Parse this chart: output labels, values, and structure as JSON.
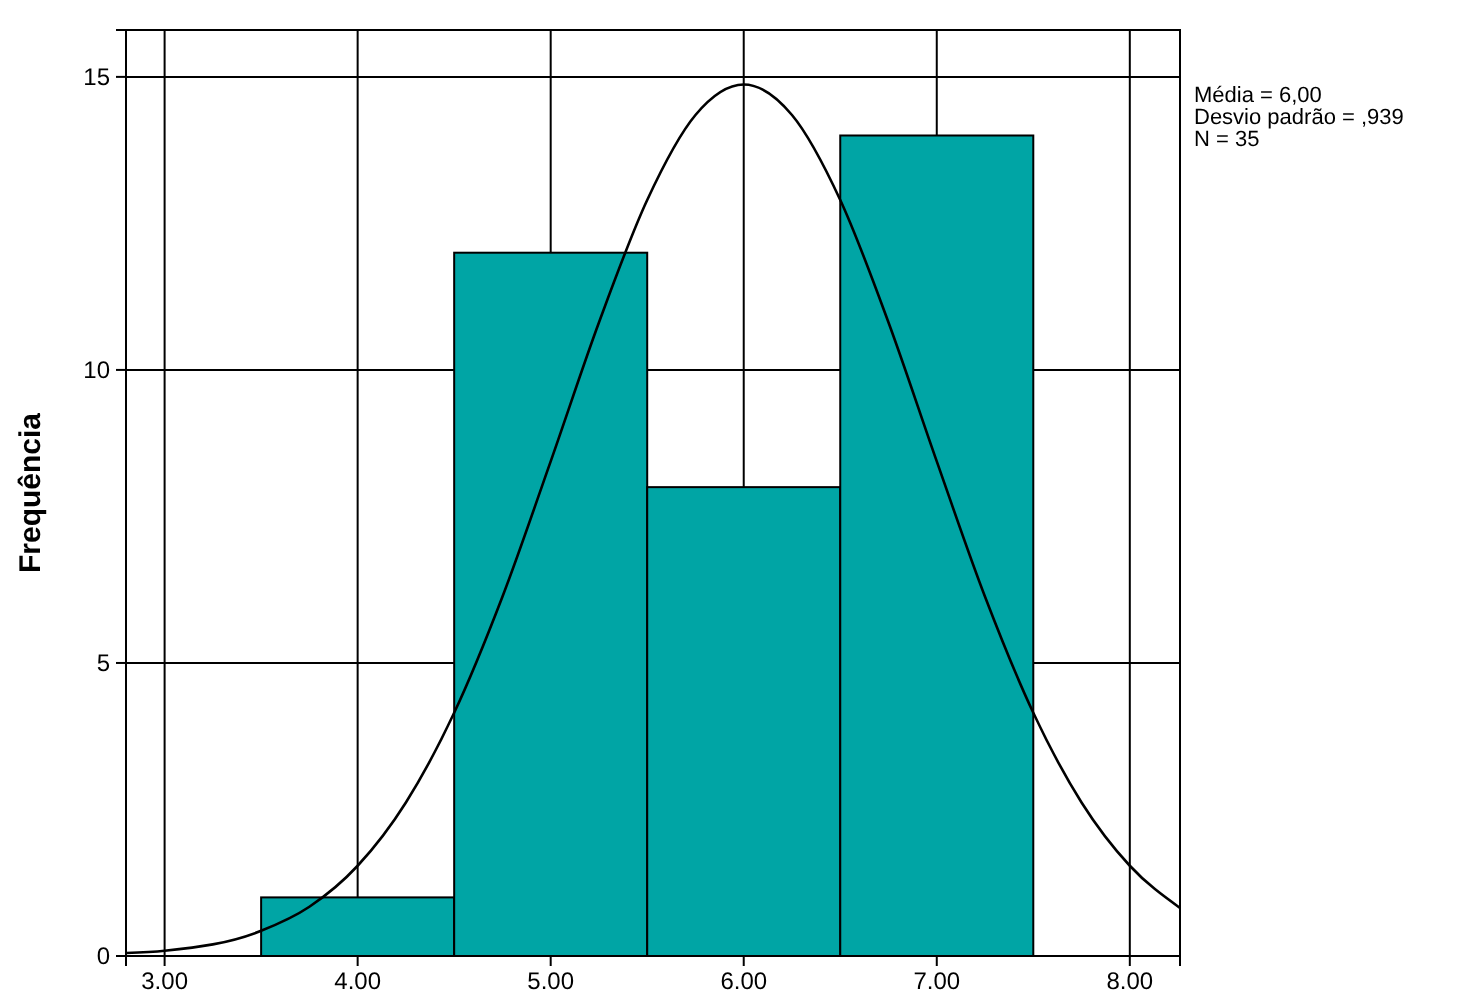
{
  "chart_data": {
    "type": "histogram",
    "ylabel": "Frequência",
    "annotations": [
      "Média = 6,00",
      "Desvio padrão = ,939",
      "N = 35"
    ],
    "bins": [
      3.5,
      4.5,
      5.5,
      6.5,
      7.5
    ],
    "series": [
      {
        "color": "#00a5a5",
        "values": [
          1,
          12,
          8,
          14
        ]
      },
      {
        "type": "line",
        "color": "#000000",
        "x": [
          2.8,
          3.0,
          3.5,
          3.75,
          4.0,
          4.25,
          4.5,
          4.75,
          5.0,
          5.25,
          5.5,
          5.75,
          6.0,
          6.25,
          6.5,
          6.75,
          7.0,
          7.25,
          7.5,
          7.75,
          8.0,
          8.26
        ],
        "values": [
          0.05,
          0.09,
          0.43,
          0.84,
          1.54,
          2.62,
          4.15,
          6.13,
          8.44,
          10.81,
          12.9,
          14.35,
          14.87,
          14.35,
          12.9,
          10.81,
          8.44,
          6.13,
          4.15,
          2.62,
          1.54,
          0.82
        ]
      }
    ],
    "xlim": [
      2.8,
      8.26
    ],
    "ylim": [
      0,
      15.8
    ],
    "xticks": [
      {
        "value": 3,
        "label": "3.00"
      },
      {
        "value": 4,
        "label": "4.00"
      },
      {
        "value": 5,
        "label": "5.00"
      },
      {
        "value": 6,
        "label": "6.00"
      },
      {
        "value": 7,
        "label": "7.00"
      },
      {
        "value": 8,
        "label": "8.00"
      }
    ],
    "yticks": [
      0,
      5,
      10,
      15
    ],
    "grid": true,
    "line_style": "solid",
    "marker": "none"
  }
}
